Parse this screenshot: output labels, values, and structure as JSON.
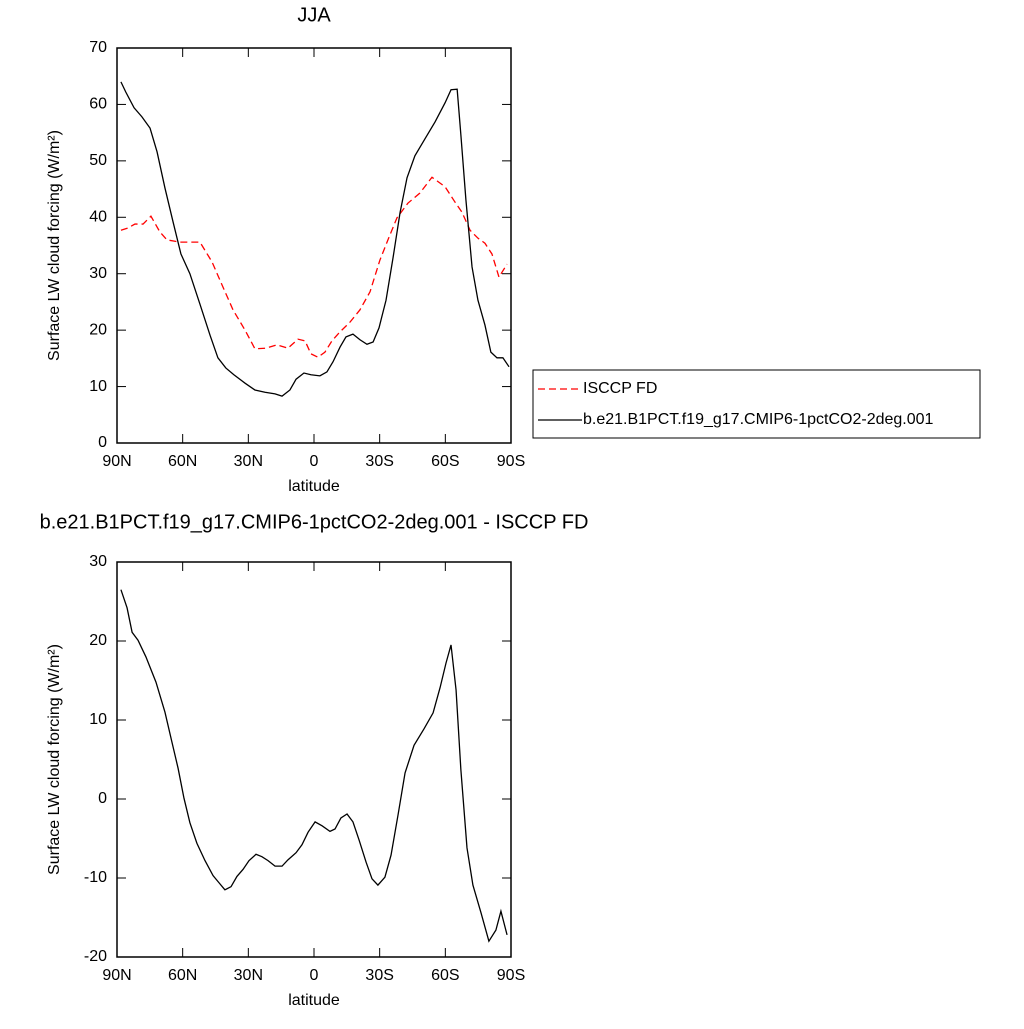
{
  "chart_data": [
    {
      "type": "line",
      "title": "JJA",
      "xlabel": "latitude",
      "ylabel": "Surface LW cloud forcing (W/m²)",
      "xlim": [
        90,
        -90
      ],
      "xticks": [
        {
          "value": 90,
          "label": "90N"
        },
        {
          "value": 60,
          "label": "60N"
        },
        {
          "value": 30,
          "label": "30N"
        },
        0,
        {
          "value": -30,
          "label": "30S"
        },
        {
          "value": -60,
          "label": "60S"
        },
        {
          "value": -90,
          "label": "90S"
        }
      ],
      "ylim": [
        0,
        70
      ],
      "yticks": [
        0,
        10,
        20,
        30,
        40,
        50,
        60,
        70
      ],
      "legend": "right",
      "series": [
        {
          "name": "ISCCP FD",
          "color": "#ff0000",
          "dash": true,
          "x": [
            88.2,
            85,
            81.8,
            78.1,
            74.5,
            70.4,
            67.2,
            61.2,
            52.1,
            46.6,
            42,
            37,
            31.5,
            27,
            22,
            16.9,
            11.9,
            7.3,
            4.1,
            1.4,
            -1.8,
            -5,
            -8.2,
            -11.9,
            -16.4,
            -21,
            -25.6,
            -30.1,
            -34.3,
            -37.9,
            -42.9,
            -48.4,
            -53.9,
            -59.9,
            -64.4,
            -67.6,
            -71.3,
            -74.9,
            -78.1,
            -81.3,
            -84.5,
            -88.2
          ],
          "values": [
            37.7,
            38.1,
            38.8,
            38.8,
            40.2,
            37.4,
            36,
            35.6,
            35.6,
            32.1,
            28,
            23.6,
            20,
            16.7,
            16.8,
            17.4,
            16.8,
            18.4,
            18.1,
            15.8,
            15.2,
            16.1,
            18.1,
            19.7,
            21.4,
            23.6,
            26.8,
            32.4,
            36.5,
            39.9,
            42.5,
            44.3,
            47.1,
            45.4,
            42.7,
            40.9,
            37.7,
            36.3,
            35.4,
            33.5,
            29.4,
            31.7
          ]
        },
        {
          "name": "b.e21.B1PCT.f19_g17.CMIP6-1pctCO2-2deg.001",
          "color": "#000000",
          "dash": false,
          "x": [
            88.2,
            86,
            82.2,
            78.6,
            74.9,
            71.7,
            68.1,
            64.4,
            60.8,
            56.7,
            52.1,
            47.5,
            43.9,
            40.3,
            36.6,
            31.5,
            27,
            22.4,
            17.8,
            14.6,
            11,
            8.2,
            4.6,
            1.4,
            -2.7,
            -5.9,
            -8.7,
            -11.9,
            -14.6,
            -17.8,
            -21,
            -24.2,
            -27,
            -29.7,
            -32.9,
            -36.1,
            -39.3,
            -42.5,
            -46.1,
            -50.7,
            -55.3,
            -59.9,
            -62.6,
            -65.4,
            -67.1,
            -69.4,
            -72.2,
            -74.9,
            -78.1,
            -80.8,
            -83.6,
            -86.3,
            -89.1
          ],
          "values": [
            64,
            62.2,
            59.4,
            57.8,
            55.8,
            51.6,
            45.2,
            39.2,
            33.5,
            30,
            24.6,
            19.1,
            15.1,
            13.3,
            12.1,
            10.6,
            9.4,
            9,
            8.7,
            8.3,
            9.4,
            11.3,
            12.4,
            12.1,
            11.9,
            12.6,
            14.4,
            17,
            18.8,
            19.3,
            18.3,
            17.5,
            17.9,
            20.4,
            25.3,
            32.8,
            40.8,
            47,
            50.9,
            53.9,
            56.9,
            60.3,
            62.6,
            62.7,
            54.6,
            43.1,
            31.2,
            25.3,
            20.9,
            16.1,
            15.1,
            15.1,
            13.5
          ]
        }
      ]
    },
    {
      "type": "line",
      "title": "b.e21.B1PCT.f19_g17.CMIP6-1pctCO2-2deg.001 - ISCCP FD",
      "xlabel": "latitude",
      "ylabel": "Surface LW cloud forcing (W/m²)",
      "xlim": [
        90,
        -90
      ],
      "xticks": [
        {
          "value": 90,
          "label": "90N"
        },
        {
          "value": 60,
          "label": "60N"
        },
        {
          "value": 30,
          "label": "30N"
        },
        0,
        {
          "value": -30,
          "label": "30S"
        },
        {
          "value": -60,
          "label": "60S"
        },
        {
          "value": -90,
          "label": "90S"
        }
      ],
      "ylim": [
        -20,
        30
      ],
      "yticks": [
        -20,
        -10,
        0,
        10,
        20,
        30
      ],
      "color": "#000000",
      "x": [
        88.2,
        85.4,
        83.1,
        80.4,
        76.8,
        72.2,
        68.1,
        64.9,
        62.1,
        59.4,
        56.7,
        53.5,
        49.8,
        46.1,
        43.4,
        40.7,
        37.9,
        35.2,
        32.4,
        29.7,
        26.5,
        23.8,
        21,
        17.8,
        14.6,
        11.9,
        8.2,
        5.5,
        2.7,
        -0.5,
        -3.7,
        -7.3,
        -9.6,
        -12.3,
        -15.1,
        -17.8,
        -20.6,
        -23.8,
        -26.5,
        -29.2,
        -32.4,
        -35.2,
        -38.4,
        -41.6,
        -45.7,
        -50.3,
        -54.4,
        -57.6,
        -60.3,
        -62.6,
        -64.9,
        -67.1,
        -69.9,
        -72.6,
        -76.3,
        -79.9,
        -83.1,
        -85.4,
        -88.2
      ],
      "values": [
        26.5,
        24.2,
        21.1,
        20.1,
        18,
        14.8,
        11,
        7.2,
        3.9,
        0.1,
        -3,
        -5.6,
        -7.8,
        -9.7,
        -10.6,
        -11.5,
        -11.1,
        -9.8,
        -8.9,
        -7.8,
        -7,
        -7.3,
        -7.8,
        -8.5,
        -8.5,
        -7.7,
        -6.8,
        -5.8,
        -4.2,
        -2.9,
        -3.4,
        -4.1,
        -3.8,
        -2.4,
        -1.9,
        -2.9,
        -5.2,
        -8,
        -10.1,
        -10.9,
        -9.9,
        -7.1,
        -2,
        3.3,
        6.8,
        8.9,
        10.9,
        14.1,
        17.2,
        19.5,
        13.8,
        3.7,
        -6.2,
        -10.9,
        -14.4,
        -18,
        -16.6,
        -14.2,
        -17.2
      ]
    }
  ]
}
